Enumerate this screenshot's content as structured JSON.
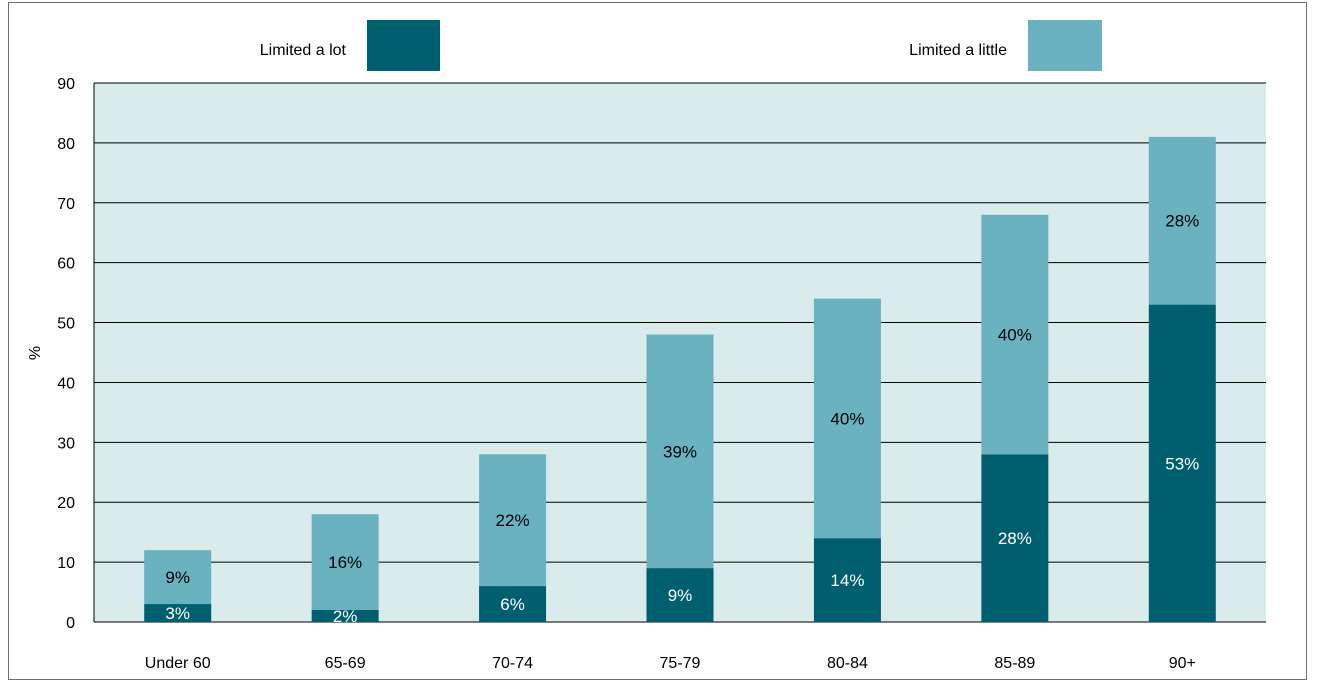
{
  "chart_data": {
    "type": "bar",
    "stacked": true,
    "categories": [
      "Under 60",
      "65-69",
      "70-74",
      "75-79",
      "80-84",
      "85-89",
      "90+"
    ],
    "series": [
      {
        "name": "Limited a lot",
        "values": [
          3,
          2,
          6,
          9,
          14,
          28,
          53
        ],
        "labels": [
          "3%",
          "2%",
          "6%",
          "9%",
          "14%",
          "28%",
          "53%"
        ],
        "color": "#005f6e",
        "label_color": "#ffffff"
      },
      {
        "name": "Limited a little",
        "values": [
          9,
          16,
          22,
          39,
          40,
          40,
          28
        ],
        "labels": [
          "9%",
          "16%",
          "22%",
          "39%",
          "40%",
          "40%",
          "28%"
        ],
        "color": "#6ab2c0",
        "label_color": "#000000"
      }
    ],
    "ylabel": "%",
    "ylim": [
      0,
      90
    ],
    "yticks": [
      "0",
      "10",
      "20",
      "30",
      "40",
      "50",
      "60",
      "70",
      "80",
      "90"
    ],
    "grid": true,
    "legend": "top",
    "plot_background": "#daebeb"
  }
}
